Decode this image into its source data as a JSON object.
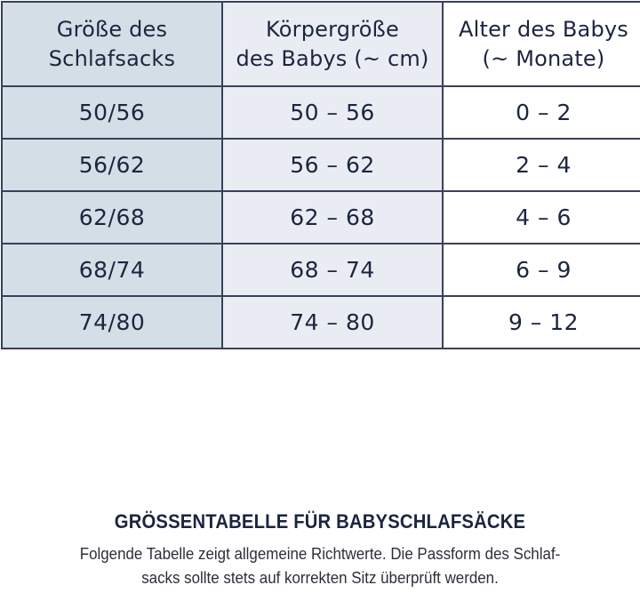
{
  "table": {
    "headers": [
      {
        "line1": "Größe des",
        "line2": "Schlafsacks"
      },
      {
        "line1": "Körpergröße",
        "line2": "des Babys (~ cm)"
      },
      {
        "line1": "Alter des Babys",
        "line2": "(~ Monate)"
      }
    ],
    "rows": [
      {
        "size": "50/56",
        "height": "50 – 56",
        "age": "0 – 2"
      },
      {
        "size": "56/62",
        "height": "56 – 62",
        "age": "2 – 4"
      },
      {
        "size": "62/68",
        "height": "62 – 68",
        "age": "4 – 6"
      },
      {
        "size": "68/74",
        "height": "68 – 74",
        "age": "6 – 9"
      },
      {
        "size": "74/80",
        "height": "74 – 80",
        "age": "9 – 12"
      }
    ],
    "colors": {
      "col1_bg": "#d3dee6",
      "col2_bg": "#e9edf3",
      "col3_bg": "#ffffff",
      "border": "#3a4058",
      "text": "#1c2540"
    }
  },
  "caption": {
    "title": "GRÖSSENTABELLE FÜR BABYSCHLAFSÄCKE",
    "text_line1": "Folgende Tabelle zeigt allgemeine Richtwerte. Die Passform des Schlaf-",
    "text_line2": "sacks sollte stets auf korrekten Sitz überprüft werden."
  }
}
